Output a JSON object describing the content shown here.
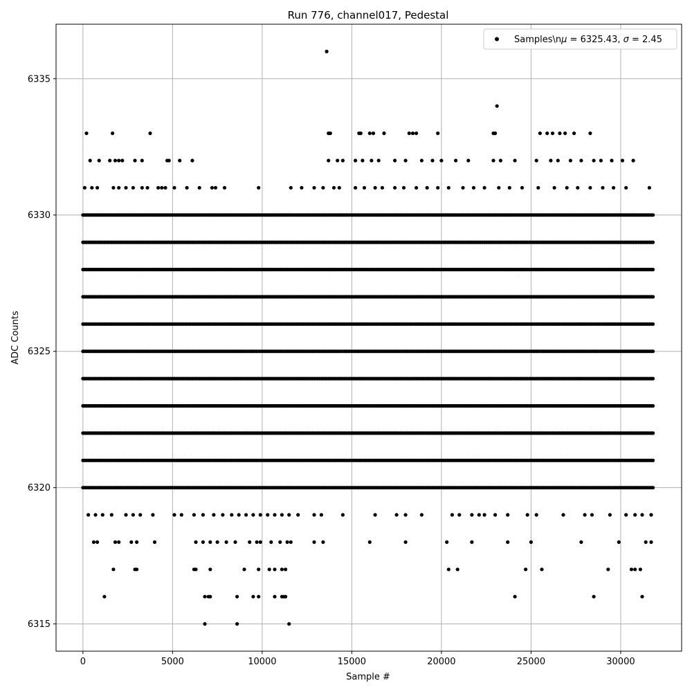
{
  "chart_data": {
    "type": "scatter",
    "title": "Run 776, channel017, Pedestal",
    "xlabel": "Sample #",
    "ylabel": "ADC Counts",
    "xlim": [
      -1500,
      33400
    ],
    "ylim": [
      6314,
      6337
    ],
    "xticks": [
      0,
      5000,
      10000,
      15000,
      20000,
      25000,
      30000
    ],
    "xtick_labels": [
      "0",
      "5000",
      "10000",
      "15000",
      "20000",
      "25000",
      "30000"
    ],
    "yticks": [
      6315,
      6320,
      6325,
      6330,
      6335
    ],
    "ytick_labels": [
      "6315",
      "6320",
      "6325",
      "6330",
      "6335"
    ],
    "grid": true,
    "legend": {
      "placement": "top-right"
    },
    "colors": {
      "marker": "#000000",
      "grid": "#b0b0b0"
    },
    "series": [
      {
        "name": "Samples\\nμ = 6325.43, σ = 2.45",
        "sample_count": 31800,
        "mean": 6325.43,
        "sigma": 2.45,
        "continuous_levels": [
          6320,
          6321,
          6322,
          6323,
          6324,
          6325,
          6326,
          6327,
          6328,
          6329,
          6330
        ],
        "points": [
          {
            "x": 13600,
            "y": 6336
          },
          {
            "x": 23100,
            "y": 6334
          },
          {
            "x": 200,
            "y": 6333
          },
          {
            "x": 1650,
            "y": 6333
          },
          {
            "x": 3750,
            "y": 6333
          },
          {
            "x": 13700,
            "y": 6333
          },
          {
            "x": 13800,
            "y": 6333
          },
          {
            "x": 15400,
            "y": 6333
          },
          {
            "x": 15500,
            "y": 6333
          },
          {
            "x": 16000,
            "y": 6333
          },
          {
            "x": 16200,
            "y": 6333
          },
          {
            "x": 16800,
            "y": 6333
          },
          {
            "x": 18200,
            "y": 6333
          },
          {
            "x": 18400,
            "y": 6333
          },
          {
            "x": 18600,
            "y": 6333
          },
          {
            "x": 19800,
            "y": 6333
          },
          {
            "x": 22900,
            "y": 6333
          },
          {
            "x": 23000,
            "y": 6333
          },
          {
            "x": 25500,
            "y": 6333
          },
          {
            "x": 25900,
            "y": 6333
          },
          {
            "x": 26200,
            "y": 6333
          },
          {
            "x": 26600,
            "y": 6333
          },
          {
            "x": 26900,
            "y": 6333
          },
          {
            "x": 27400,
            "y": 6333
          },
          {
            "x": 28300,
            "y": 6333
          },
          {
            "x": 400,
            "y": 6332
          },
          {
            "x": 900,
            "y": 6332
          },
          {
            "x": 1500,
            "y": 6332
          },
          {
            "x": 1800,
            "y": 6332
          },
          {
            "x": 2000,
            "y": 6332
          },
          {
            "x": 2200,
            "y": 6332
          },
          {
            "x": 2900,
            "y": 6332
          },
          {
            "x": 3300,
            "y": 6332
          },
          {
            "x": 4700,
            "y": 6332
          },
          {
            "x": 4800,
            "y": 6332
          },
          {
            "x": 5400,
            "y": 6332
          },
          {
            "x": 6100,
            "y": 6332
          },
          {
            "x": 13700,
            "y": 6332
          },
          {
            "x": 14200,
            "y": 6332
          },
          {
            "x": 14500,
            "y": 6332
          },
          {
            "x": 15200,
            "y": 6332
          },
          {
            "x": 15600,
            "y": 6332
          },
          {
            "x": 16100,
            "y": 6332
          },
          {
            "x": 16500,
            "y": 6332
          },
          {
            "x": 17400,
            "y": 6332
          },
          {
            "x": 18000,
            "y": 6332
          },
          {
            "x": 18900,
            "y": 6332
          },
          {
            "x": 19500,
            "y": 6332
          },
          {
            "x": 20000,
            "y": 6332
          },
          {
            "x": 20800,
            "y": 6332
          },
          {
            "x": 21500,
            "y": 6332
          },
          {
            "x": 22900,
            "y": 6332
          },
          {
            "x": 23300,
            "y": 6332
          },
          {
            "x": 24100,
            "y": 6332
          },
          {
            "x": 25300,
            "y": 6332
          },
          {
            "x": 26100,
            "y": 6332
          },
          {
            "x": 26500,
            "y": 6332
          },
          {
            "x": 27200,
            "y": 6332
          },
          {
            "x": 27800,
            "y": 6332
          },
          {
            "x": 28500,
            "y": 6332
          },
          {
            "x": 28900,
            "y": 6332
          },
          {
            "x": 29500,
            "y": 6332
          },
          {
            "x": 30100,
            "y": 6332
          },
          {
            "x": 30700,
            "y": 6332
          },
          {
            "x": 100,
            "y": 6331
          },
          {
            "x": 500,
            "y": 6331
          },
          {
            "x": 800,
            "y": 6331
          },
          {
            "x": 1700,
            "y": 6331
          },
          {
            "x": 2000,
            "y": 6331
          },
          {
            "x": 2400,
            "y": 6331
          },
          {
            "x": 2800,
            "y": 6331
          },
          {
            "x": 3300,
            "y": 6331
          },
          {
            "x": 3600,
            "y": 6331
          },
          {
            "x": 4200,
            "y": 6331
          },
          {
            "x": 4400,
            "y": 6331
          },
          {
            "x": 4600,
            "y": 6331
          },
          {
            "x": 5100,
            "y": 6331
          },
          {
            "x": 5800,
            "y": 6331
          },
          {
            "x": 6500,
            "y": 6331
          },
          {
            "x": 7200,
            "y": 6331
          },
          {
            "x": 7400,
            "y": 6331
          },
          {
            "x": 7900,
            "y": 6331
          },
          {
            "x": 9800,
            "y": 6331
          },
          {
            "x": 11600,
            "y": 6331
          },
          {
            "x": 12200,
            "y": 6331
          },
          {
            "x": 12900,
            "y": 6331
          },
          {
            "x": 13400,
            "y": 6331
          },
          {
            "x": 14000,
            "y": 6331
          },
          {
            "x": 14300,
            "y": 6331
          },
          {
            "x": 15200,
            "y": 6331
          },
          {
            "x": 15700,
            "y": 6331
          },
          {
            "x": 16300,
            "y": 6331
          },
          {
            "x": 16700,
            "y": 6331
          },
          {
            "x": 17400,
            "y": 6331
          },
          {
            "x": 17900,
            "y": 6331
          },
          {
            "x": 18600,
            "y": 6331
          },
          {
            "x": 19200,
            "y": 6331
          },
          {
            "x": 19800,
            "y": 6331
          },
          {
            "x": 20400,
            "y": 6331
          },
          {
            "x": 21200,
            "y": 6331
          },
          {
            "x": 21800,
            "y": 6331
          },
          {
            "x": 22400,
            "y": 6331
          },
          {
            "x": 23200,
            "y": 6331
          },
          {
            "x": 23800,
            "y": 6331
          },
          {
            "x": 24500,
            "y": 6331
          },
          {
            "x": 25400,
            "y": 6331
          },
          {
            "x": 26300,
            "y": 6331
          },
          {
            "x": 27000,
            "y": 6331
          },
          {
            "x": 27600,
            "y": 6331
          },
          {
            "x": 28300,
            "y": 6331
          },
          {
            "x": 29000,
            "y": 6331
          },
          {
            "x": 29600,
            "y": 6331
          },
          {
            "x": 30300,
            "y": 6331
          },
          {
            "x": 31600,
            "y": 6331
          },
          {
            "x": 300,
            "y": 6319
          },
          {
            "x": 700,
            "y": 6319
          },
          {
            "x": 1100,
            "y": 6319
          },
          {
            "x": 1600,
            "y": 6319
          },
          {
            "x": 2400,
            "y": 6319
          },
          {
            "x": 2800,
            "y": 6319
          },
          {
            "x": 3200,
            "y": 6319
          },
          {
            "x": 3900,
            "y": 6319
          },
          {
            "x": 5100,
            "y": 6319
          },
          {
            "x": 5500,
            "y": 6319
          },
          {
            "x": 6200,
            "y": 6319
          },
          {
            "x": 6700,
            "y": 6319
          },
          {
            "x": 7300,
            "y": 6319
          },
          {
            "x": 7800,
            "y": 6319
          },
          {
            "x": 8300,
            "y": 6319
          },
          {
            "x": 8700,
            "y": 6319
          },
          {
            "x": 9100,
            "y": 6319
          },
          {
            "x": 9500,
            "y": 6319
          },
          {
            "x": 9900,
            "y": 6319
          },
          {
            "x": 10300,
            "y": 6319
          },
          {
            "x": 10700,
            "y": 6319
          },
          {
            "x": 11100,
            "y": 6319
          },
          {
            "x": 11500,
            "y": 6319
          },
          {
            "x": 12000,
            "y": 6319
          },
          {
            "x": 12900,
            "y": 6319
          },
          {
            "x": 13300,
            "y": 6319
          },
          {
            "x": 14500,
            "y": 6319
          },
          {
            "x": 16300,
            "y": 6319
          },
          {
            "x": 17500,
            "y": 6319
          },
          {
            "x": 18000,
            "y": 6319
          },
          {
            "x": 18900,
            "y": 6319
          },
          {
            "x": 20600,
            "y": 6319
          },
          {
            "x": 21000,
            "y": 6319
          },
          {
            "x": 21700,
            "y": 6319
          },
          {
            "x": 22100,
            "y": 6319
          },
          {
            "x": 22400,
            "y": 6319
          },
          {
            "x": 23000,
            "y": 6319
          },
          {
            "x": 23700,
            "y": 6319
          },
          {
            "x": 24800,
            "y": 6319
          },
          {
            "x": 25300,
            "y": 6319
          },
          {
            "x": 26800,
            "y": 6319
          },
          {
            "x": 28000,
            "y": 6319
          },
          {
            "x": 28400,
            "y": 6319
          },
          {
            "x": 29400,
            "y": 6319
          },
          {
            "x": 30300,
            "y": 6319
          },
          {
            "x": 30800,
            "y": 6319
          },
          {
            "x": 31200,
            "y": 6319
          },
          {
            "x": 31700,
            "y": 6319
          },
          {
            "x": 600,
            "y": 6318
          },
          {
            "x": 800,
            "y": 6318
          },
          {
            "x": 1800,
            "y": 6318
          },
          {
            "x": 2000,
            "y": 6318
          },
          {
            "x": 2700,
            "y": 6318
          },
          {
            "x": 3000,
            "y": 6318
          },
          {
            "x": 4000,
            "y": 6318
          },
          {
            "x": 6300,
            "y": 6318
          },
          {
            "x": 6700,
            "y": 6318
          },
          {
            "x": 7100,
            "y": 6318
          },
          {
            "x": 7500,
            "y": 6318
          },
          {
            "x": 8000,
            "y": 6318
          },
          {
            "x": 8500,
            "y": 6318
          },
          {
            "x": 9300,
            "y": 6318
          },
          {
            "x": 9700,
            "y": 6318
          },
          {
            "x": 9900,
            "y": 6318
          },
          {
            "x": 10500,
            "y": 6318
          },
          {
            "x": 11000,
            "y": 6318
          },
          {
            "x": 11400,
            "y": 6318
          },
          {
            "x": 11600,
            "y": 6318
          },
          {
            "x": 12900,
            "y": 6318
          },
          {
            "x": 13400,
            "y": 6318
          },
          {
            "x": 16000,
            "y": 6318
          },
          {
            "x": 18000,
            "y": 6318
          },
          {
            "x": 20300,
            "y": 6318
          },
          {
            "x": 21700,
            "y": 6318
          },
          {
            "x": 23700,
            "y": 6318
          },
          {
            "x": 25000,
            "y": 6318
          },
          {
            "x": 27800,
            "y": 6318
          },
          {
            "x": 29900,
            "y": 6318
          },
          {
            "x": 31400,
            "y": 6318
          },
          {
            "x": 31700,
            "y": 6318
          },
          {
            "x": 1700,
            "y": 6317
          },
          {
            "x": 2900,
            "y": 6317
          },
          {
            "x": 3000,
            "y": 6317
          },
          {
            "x": 6200,
            "y": 6317
          },
          {
            "x": 6300,
            "y": 6317
          },
          {
            "x": 7100,
            "y": 6317
          },
          {
            "x": 9000,
            "y": 6317
          },
          {
            "x": 9800,
            "y": 6317
          },
          {
            "x": 10400,
            "y": 6317
          },
          {
            "x": 10700,
            "y": 6317
          },
          {
            "x": 11100,
            "y": 6317
          },
          {
            "x": 11300,
            "y": 6317
          },
          {
            "x": 20400,
            "y": 6317
          },
          {
            "x": 20900,
            "y": 6317
          },
          {
            "x": 24700,
            "y": 6317
          },
          {
            "x": 25600,
            "y": 6317
          },
          {
            "x": 29300,
            "y": 6317
          },
          {
            "x": 30600,
            "y": 6317
          },
          {
            "x": 30800,
            "y": 6317
          },
          {
            "x": 31100,
            "y": 6317
          },
          {
            "x": 1200,
            "y": 6316
          },
          {
            "x": 6800,
            "y": 6316
          },
          {
            "x": 7000,
            "y": 6316
          },
          {
            "x": 7100,
            "y": 6316
          },
          {
            "x": 8600,
            "y": 6316
          },
          {
            "x": 9500,
            "y": 6316
          },
          {
            "x": 9800,
            "y": 6316
          },
          {
            "x": 10700,
            "y": 6316
          },
          {
            "x": 11100,
            "y": 6316
          },
          {
            "x": 11200,
            "y": 6316
          },
          {
            "x": 11300,
            "y": 6316
          },
          {
            "x": 24100,
            "y": 6316
          },
          {
            "x": 28500,
            "y": 6316
          },
          {
            "x": 31200,
            "y": 6316
          },
          {
            "x": 6800,
            "y": 6315
          },
          {
            "x": 8600,
            "y": 6315
          },
          {
            "x": 11500,
            "y": 6315
          }
        ]
      }
    ]
  }
}
